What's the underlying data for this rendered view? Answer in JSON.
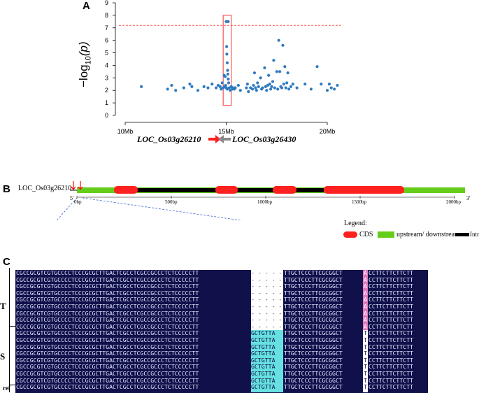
{
  "panelA": {
    "letter": "A",
    "ylabel_main": "−log",
    "ylabel_sub": "10",
    "ylabel_tail": "(p)",
    "yticks": [
      "0",
      "1",
      "2",
      "3",
      "4",
      "5",
      "6",
      "7",
      "8",
      "9"
    ],
    "xticks": [
      "10Mb",
      "15Mb",
      "20Mb"
    ],
    "gene_left": "LOC_Os03g26210",
    "gene_right": "LOC_Os03g26430",
    "colors": {
      "points": "#2f7bbf",
      "threshold": "#ff5a5a",
      "box": "#ff3333",
      "arrow_left": "#ff2020",
      "arrow_right": "#8a8a8a"
    }
  },
  "chart_data": {
    "type": "scatter",
    "title": "",
    "xlabel": "",
    "ylabel": "-log10(p)",
    "xlim": [
      10,
      21
    ],
    "ylim": [
      0,
      9
    ],
    "threshold": 7.2,
    "highlight_region": [
      14.85,
      15.25
    ],
    "x_units": "Mb",
    "points": [
      [
        10.8,
        2.3
      ],
      [
        12.1,
        2.1
      ],
      [
        12.3,
        2.4
      ],
      [
        12.5,
        2.0
      ],
      [
        12.9,
        2.2
      ],
      [
        13.2,
        2.5
      ],
      [
        13.3,
        2.3
      ],
      [
        13.6,
        2.0
      ],
      [
        13.9,
        2.3
      ],
      [
        14.1,
        2.2
      ],
      [
        14.3,
        2.5
      ],
      [
        14.5,
        2.2
      ],
      [
        14.6,
        2.4
      ],
      [
        14.7,
        2.3
      ],
      [
        14.75,
        2.1
      ],
      [
        14.8,
        2.6
      ],
      [
        14.85,
        2.2
      ],
      [
        14.9,
        3.2
      ],
      [
        14.92,
        2.3
      ],
      [
        14.95,
        3.1
      ],
      [
        14.97,
        2.4
      ],
      [
        15.0,
        7.5
      ],
      [
        15.1,
        7.5
      ],
      [
        15.02,
        5.5
      ],
      [
        15.03,
        4.9
      ],
      [
        15.05,
        4.2
      ],
      [
        15.07,
        3.6
      ],
      [
        15.08,
        3.3
      ],
      [
        15.1,
        2.9
      ],
      [
        15.12,
        2.6
      ],
      [
        15.0,
        2.2
      ],
      [
        15.05,
        2.1
      ],
      [
        15.15,
        2.2
      ],
      [
        15.2,
        2.0
      ],
      [
        15.25,
        2.3
      ],
      [
        15.3,
        2.1
      ],
      [
        15.35,
        2.2
      ],
      [
        15.4,
        2.1
      ],
      [
        15.45,
        2.2
      ],
      [
        15.6,
        2.4
      ],
      [
        15.7,
        2.0
      ],
      [
        16.0,
        2.2
      ],
      [
        16.05,
        2.5
      ],
      [
        16.1,
        1.9
      ],
      [
        16.2,
        2.2
      ],
      [
        16.3,
        2.1
      ],
      [
        16.35,
        2.4
      ],
      [
        16.4,
        3.4
      ],
      [
        16.45,
        2.2
      ],
      [
        16.5,
        2.0
      ],
      [
        16.55,
        2.6
      ],
      [
        16.6,
        2.3
      ],
      [
        16.7,
        3.0
      ],
      [
        16.75,
        2.1
      ],
      [
        16.8,
        2.2
      ],
      [
        16.9,
        3.8
      ],
      [
        16.95,
        2.3
      ],
      [
        17.0,
        2.0
      ],
      [
        17.05,
        2.4
      ],
      [
        17.1,
        3.2
      ],
      [
        17.15,
        2.5
      ],
      [
        17.2,
        2.1
      ],
      [
        17.25,
        2.3
      ],
      [
        17.3,
        2.7
      ],
      [
        17.35,
        4.4
      ],
      [
        17.4,
        2.2
      ],
      [
        17.5,
        3.5
      ],
      [
        17.55,
        2.1
      ],
      [
        17.6,
        6.0
      ],
      [
        17.65,
        3.5
      ],
      [
        17.7,
        2.3
      ],
      [
        17.75,
        2.2
      ],
      [
        17.8,
        5.6
      ],
      [
        17.85,
        2.5
      ],
      [
        17.9,
        3.9
      ],
      [
        17.95,
        2.2
      ],
      [
        18.0,
        2.6
      ],
      [
        18.05,
        3.4
      ],
      [
        18.1,
        2.1
      ],
      [
        18.2,
        2.3
      ],
      [
        18.3,
        2.5
      ],
      [
        18.5,
        2.2
      ],
      [
        18.9,
        2.5
      ],
      [
        19.2,
        2.1
      ],
      [
        19.5,
        3.9
      ],
      [
        19.7,
        2.5
      ],
      [
        20.0,
        2.0
      ],
      [
        20.1,
        2.5
      ],
      [
        20.2,
        2.2
      ],
      [
        20.35,
        2.1
      ],
      [
        20.5,
        2.4
      ]
    ]
  },
  "panelB": {
    "letter": "B",
    "gene_label": "LOC_Os03g26210",
    "prime5": "5'",
    "prime3": "3'",
    "ticks": [
      "0bp",
      "500bp",
      "1000bp",
      "1500bp",
      "2000bp"
    ],
    "legend_title": "Legend:",
    "legend_cds": "CDS",
    "legend_utr": "upstream/ downstream",
    "legend_intron": "Intron",
    "colors": {
      "cds": "#ff2020",
      "utr": "#66cc1a",
      "intron": "#000000",
      "markers": "#ff0000"
    }
  },
  "panelC": {
    "letter": "C",
    "group_T": "T",
    "group_S": "S",
    "group_ref": "ref",
    "seq_left": "CGCCGCGTCGTGCCCCTCCCGCGCTTGACTCGCCTCGCCGCCCTCTCCCCCTT",
    "seq_mid": "TTGCTCCCTTCGCGGCT",
    "seq_right": "CCTTCTTCTTCTT",
    "gap": "- - - - - - - -",
    "ins": "GCTGTTA",
    "snp_T": "A",
    "snp_S": "T",
    "rows": [
      {
        "type": "T"
      },
      {
        "type": "T"
      },
      {
        "type": "T"
      },
      {
        "type": "T"
      },
      {
        "type": "T"
      },
      {
        "type": "T"
      },
      {
        "type": "T"
      },
      {
        "type": "T"
      },
      {
        "type": "T"
      },
      {
        "type": "S"
      },
      {
        "type": "S"
      },
      {
        "type": "S"
      },
      {
        "type": "S"
      },
      {
        "type": "S"
      },
      {
        "type": "S"
      },
      {
        "type": "S"
      },
      {
        "type": "S"
      },
      {
        "type": "S"
      }
    ],
    "colors": {
      "bg": "#10104a",
      "ins": "#66e0e0",
      "snp": "#e07ac0"
    }
  }
}
